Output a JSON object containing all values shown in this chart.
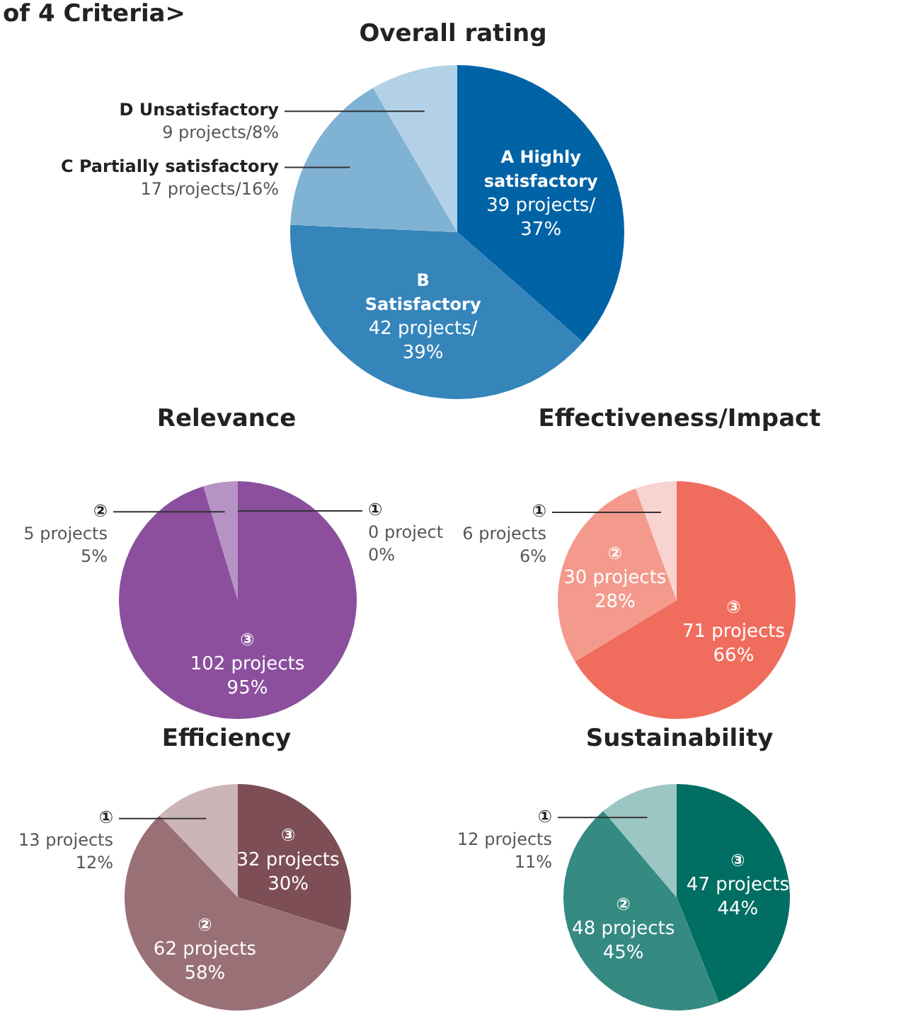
{
  "chart_data": [
    {
      "type": "pie",
      "title": "Overall rating",
      "annotations": [
        "of 4 Criteria>"
      ],
      "categories": [
        "A Highly satisfactory",
        "B Satisfactory",
        "C Partially satisfactory",
        "D Unsatisfactory"
      ],
      "values": [
        39,
        42,
        17,
        9
      ],
      "value_labels": [
        "39 projects/\n37%",
        "42 projects/\n39%",
        "17 projects/16%",
        "9 projects/8%"
      ],
      "colors": [
        "#0063a6",
        "#3585bb",
        "#80b2d4",
        "#b3d1e6"
      ],
      "legend": false
    },
    {
      "type": "pie",
      "title": "Relevance",
      "categories": [
        "③",
        "②",
        "①"
      ],
      "values": [
        102,
        5,
        0
      ],
      "value_labels": [
        "102 projects\n95%",
        "5 projects\n5%",
        "0 project\n0%"
      ],
      "colors": [
        "#8b4f9d",
        "#b593c4",
        "#d9c4e0"
      ],
      "legend": false
    },
    {
      "type": "pie",
      "title": "Effectiveness/Impact",
      "categories": [
        "③",
        "②",
        "①"
      ],
      "values": [
        71,
        30,
        6
      ],
      "value_labels": [
        "71 projects\n66%",
        "30 projects\n28%",
        "6 projects\n6%"
      ],
      "colors": [
        "#f06d5e",
        "#f39a8d",
        "#f9d3cf"
      ],
      "legend": false
    },
    {
      "type": "pie",
      "title": "Efficiency",
      "categories": [
        "③",
        "②",
        "①"
      ],
      "values": [
        32,
        62,
        13
      ],
      "value_labels": [
        "32 projects\n30%",
        "62 projects\n58%",
        "13 projects\n12%"
      ],
      "colors": [
        "#7d4e55",
        "#997076",
        "#cbb5b8"
      ],
      "legend": false
    },
    {
      "type": "pie",
      "title": "Sustainability",
      "categories": [
        "③",
        "②",
        "①"
      ],
      "values": [
        47,
        48,
        12
      ],
      "value_labels": [
        "47 projects\n44%",
        "48 projects\n45%",
        "12 projects\n11%"
      ],
      "colors": [
        "#006e62",
        "#358a82",
        "#9bc6c3"
      ],
      "legend": false
    }
  ]
}
